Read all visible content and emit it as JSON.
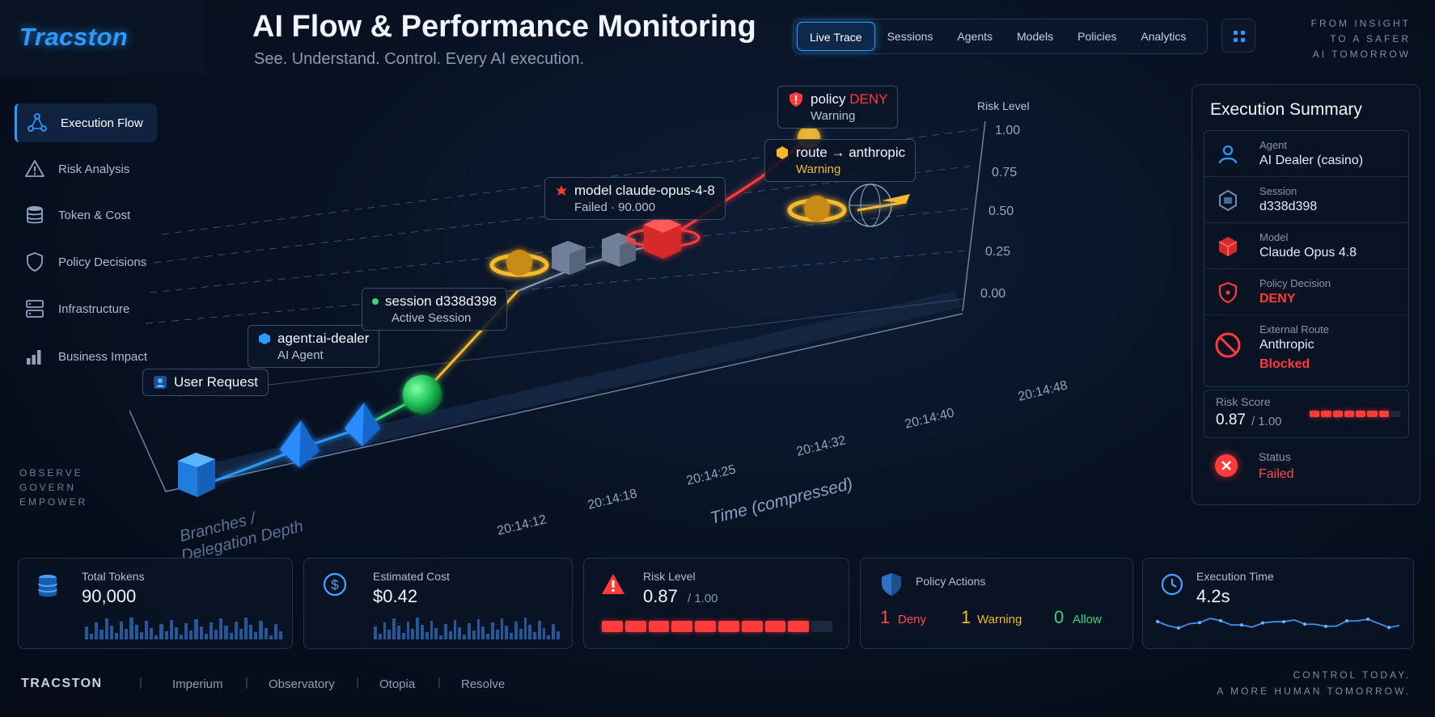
{
  "brand": {
    "logo": "Tracston",
    "footer_logo": "TRACSTON"
  },
  "header": {
    "title": "AI Flow & Performance Monitoring",
    "subtitle": "See. Understand. Control. Every AI execution.",
    "tabs": [
      {
        "label": "Live Trace",
        "active": true
      },
      {
        "label": "Sessions"
      },
      {
        "label": "Agents"
      },
      {
        "label": "Models"
      },
      {
        "label": "Policies"
      },
      {
        "label": "Analytics"
      }
    ],
    "tagline": [
      "FROM INSIGHT",
      "TO A SAFER",
      "AI TOMORROW"
    ]
  },
  "sidebar": {
    "items": [
      {
        "label": "Execution Flow",
        "icon": "flow-icon",
        "active": true
      },
      {
        "label": "Risk Analysis",
        "icon": "warning-icon"
      },
      {
        "label": "Token & Cost",
        "icon": "database-icon"
      },
      {
        "label": "Policy Decisions",
        "icon": "shield-icon"
      },
      {
        "label": "Infrastructure",
        "icon": "server-icon"
      },
      {
        "label": "Business Impact",
        "icon": "bar-chart-icon"
      }
    ],
    "tagline": [
      "OBSERVE",
      "GOVERN",
      "EMPOWER"
    ]
  },
  "flow": {
    "risk_axis_label": "Risk Level",
    "risk_ticks": [
      "1.00",
      "0.75",
      "0.50",
      "0.25",
      "0.00"
    ],
    "time_axis_label": "Time (compressed)",
    "depth_axis_label": [
      "Branches /",
      "Delegation Depth"
    ],
    "time_ticks": [
      "20:14:12",
      "20:14:18",
      "20:14:25",
      "20:14:32",
      "20:14:40",
      "20:14:48"
    ],
    "nodes": {
      "user": {
        "title": "User Request"
      },
      "agent": {
        "title": "agent:ai-dealer",
        "sub": "AI Agent"
      },
      "session": {
        "title": "session d338d398",
        "sub": "Active Session"
      },
      "model": {
        "title": "model claude-opus-4-8",
        "sub": "Failed · 90.000"
      },
      "route": {
        "title": "route → anthropic",
        "sub": "Warning"
      },
      "policy": {
        "title_prefix": "policy",
        "title_emph": "DENY",
        "sub": "Warning"
      }
    }
  },
  "summary": {
    "title": "Execution Summary",
    "rows": [
      {
        "key": "Agent",
        "value": "AI Dealer (casino)",
        "icon": "user-icon"
      },
      {
        "key": "Session",
        "value": "d338d398",
        "icon": "session-hexagon-icon"
      },
      {
        "key": "Model",
        "value": "Claude Opus 4.8",
        "icon": "model-cube-icon"
      },
      {
        "key": "Policy Decision",
        "value": "DENY",
        "icon": "shield-alert-icon"
      },
      {
        "key": "External Route",
        "value": "Anthropic",
        "value2": "Blocked",
        "icon": "blocked-icon"
      }
    ],
    "risk": {
      "label": "Risk Score",
      "value": "0.87",
      "max": "/ 1.00",
      "level": 0.87
    },
    "status": {
      "label": "Status",
      "value": "Failed",
      "icon": "failed-x-icon"
    }
  },
  "metrics": {
    "tokens": {
      "label": "Total Tokens",
      "value": "90,000"
    },
    "cost": {
      "label": "Estimated Cost",
      "value": "$0.42"
    },
    "risk": {
      "label": "Risk Level",
      "value": "0.87",
      "max": "/ 1.00",
      "level": 0.87
    },
    "policy": {
      "label": "Policy Actions",
      "deny_count": "1",
      "deny_label": "Deny",
      "warn_count": "1",
      "warn_label": "Warning",
      "allow_count": "0",
      "allow_label": "Allow"
    },
    "time": {
      "label": "Execution Time",
      "value": "4.2s"
    }
  },
  "footer": {
    "links": [
      "Imperium",
      "Observatory",
      "Otopia",
      "Resolve"
    ],
    "tagline": [
      "CONTROL TODAY.",
      "A MORE HUMAN TOMORROW."
    ]
  },
  "colors": {
    "accent": "#2d9bff",
    "danger": "#ff3b3b",
    "warning": "#f5b82e",
    "success": "#36d67a"
  }
}
